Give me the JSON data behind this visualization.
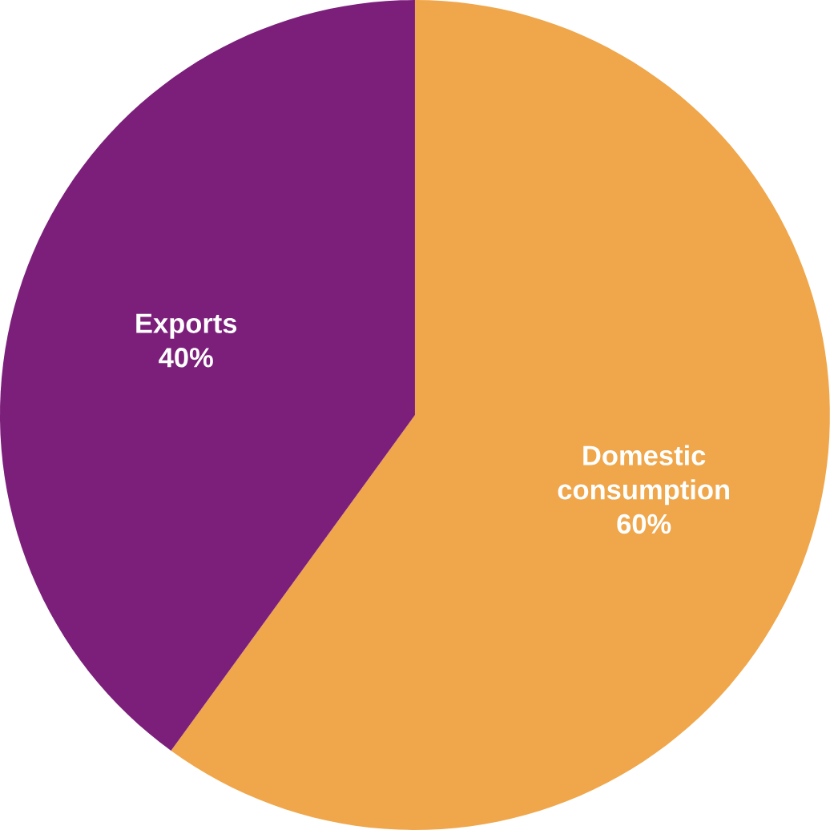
{
  "chart_data": {
    "type": "pie",
    "categories": [
      "Domestic consumption",
      "Exports"
    ],
    "values": [
      60,
      40
    ],
    "value_labels": [
      "60%",
      "40%"
    ],
    "colors": [
      "#f0a64a",
      "#7b1f7a"
    ]
  }
}
